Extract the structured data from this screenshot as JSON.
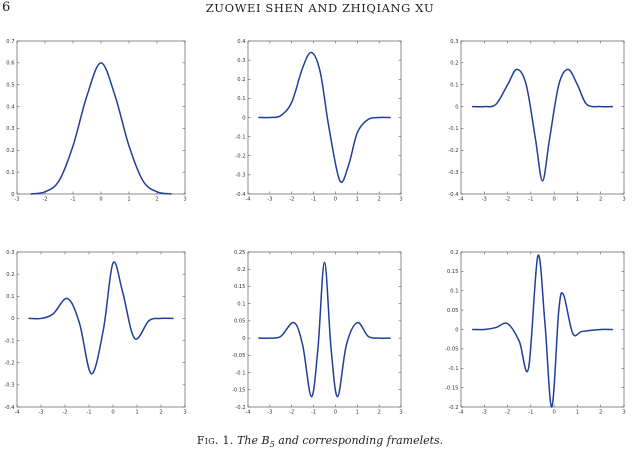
{
  "header": {
    "page_number": "6",
    "running_title": "ZUOWEI SHEN AND ZHIQIANG XU"
  },
  "caption": {
    "fig_label": "Fig. 1.",
    "text_before": "The B",
    "subscript": "5",
    "text_after": " and corresponding framelets."
  },
  "chart_data": [
    {
      "type": "line",
      "xlim": [
        -3,
        3
      ],
      "ylim": [
        0,
        0.7
      ],
      "xticks": [
        "-3",
        "-2",
        "-1",
        "0",
        "1",
        "2",
        "3"
      ],
      "yticks": [
        "0",
        "0.1",
        "0.2",
        "0.3",
        "0.4",
        "0.5",
        "0.6",
        "0.7"
      ],
      "x": [
        -2.5,
        -2,
        -1.5,
        -1,
        -0.5,
        0,
        0.5,
        1,
        1.5,
        2,
        2.5
      ],
      "y": [
        0.0,
        0.01,
        0.06,
        0.22,
        0.45,
        0.6,
        0.45,
        0.22,
        0.06,
        0.01,
        0.0
      ]
    },
    {
      "type": "line",
      "xlim": [
        -4,
        3
      ],
      "ylim": [
        -0.4,
        0.4
      ],
      "xticks": [
        "-4",
        "-3",
        "-2",
        "-1",
        "0",
        "1",
        "2",
        "3"
      ],
      "yticks": [
        "-0.4",
        "-0.3",
        "-0.2",
        "-0.1",
        "0",
        "0.1",
        "0.2",
        "0.3",
        "0.4"
      ],
      "x": [
        -3.5,
        -3,
        -2.5,
        -2,
        -1.5,
        -1.1,
        -0.7,
        -0.3,
        0.2,
        0.6,
        1,
        1.5,
        2,
        2.5
      ],
      "y": [
        0.0,
        0.0,
        0.01,
        0.08,
        0.26,
        0.34,
        0.24,
        -0.05,
        -0.33,
        -0.25,
        -0.08,
        -0.01,
        0.0,
        0.0
      ]
    },
    {
      "type": "line",
      "xlim": [
        -4,
        3
      ],
      "ylim": [
        -0.4,
        0.3
      ],
      "xticks": [
        "-4",
        "-3",
        "-2",
        "-1",
        "0",
        "1",
        "2",
        "3"
      ],
      "yticks": [
        "-0.4",
        "-0.3",
        "-0.2",
        "-0.1",
        "0",
        "0.1",
        "0.2",
        "0.3"
      ],
      "x": [
        -3.5,
        -3,
        -2.5,
        -2,
        -1.6,
        -1.2,
        -0.8,
        -0.5,
        -0.2,
        0.2,
        0.6,
        1,
        1.4,
        2,
        2.5
      ],
      "y": [
        0.0,
        0.0,
        0.01,
        0.1,
        0.17,
        0.1,
        -0.15,
        -0.34,
        -0.15,
        0.1,
        0.17,
        0.1,
        0.01,
        0.0,
        0.0
      ]
    },
    {
      "type": "line",
      "xlim": [
        -4,
        3
      ],
      "ylim": [
        -0.4,
        0.3
      ],
      "xticks": [
        "-4",
        "-3",
        "-2",
        "-1",
        "0",
        "1",
        "2",
        "3"
      ],
      "yticks": [
        "-0.4",
        "-0.3",
        "-0.2",
        "-0.1",
        "0",
        "0.1",
        "0.2",
        "0.3"
      ],
      "x": [
        -3.5,
        -3,
        -2.5,
        -1.9,
        -1.4,
        -0.9,
        -0.4,
        0,
        0.4,
        0.9,
        1.5,
        2,
        2.5
      ],
      "y": [
        0.0,
        0.0,
        0.02,
        0.09,
        -0.02,
        -0.25,
        -0.05,
        0.25,
        0.12,
        -0.09,
        -0.01,
        0.0,
        0.0
      ]
    },
    {
      "type": "line",
      "xlim": [
        -4,
        3
      ],
      "ylim": [
        -0.2,
        0.25
      ],
      "xticks": [
        "-4",
        "-3",
        "-2",
        "-1",
        "0",
        "1",
        "2",
        "3"
      ],
      "yticks": [
        "-0.2",
        "-0.15",
        "-0.1",
        "-0.05",
        "0",
        "0.05",
        "0.1",
        "0.15",
        "0.2",
        "0.25"
      ],
      "x": [
        -3.5,
        -3,
        -2.5,
        -1.9,
        -1.5,
        -1.1,
        -0.8,
        -0.5,
        -0.2,
        0.1,
        0.5,
        1,
        1.5,
        2,
        2.5
      ],
      "y": [
        0.0,
        0.0,
        0.005,
        0.045,
        -0.02,
        -0.17,
        -0.03,
        0.22,
        -0.03,
        -0.17,
        -0.02,
        0.045,
        0.005,
        0.0,
        0.0
      ]
    },
    {
      "type": "line",
      "xlim": [
        -4,
        3
      ],
      "ylim": [
        -0.2,
        0.2
      ],
      "xticks": [
        "-4",
        "-3",
        "-2",
        "-1",
        "0",
        "1",
        "2",
        "3"
      ],
      "yticks": [
        "-0.2",
        "-0.15",
        "-0.1",
        "-0.05",
        "0",
        "0.05",
        "0.1",
        "0.15",
        "0.2"
      ],
      "x": [
        -3.5,
        -3,
        -2.5,
        -2,
        -1.5,
        -1.1,
        -0.7,
        -0.4,
        -0.1,
        0.2,
        0.4,
        0.8,
        1.2,
        2,
        2.5
      ],
      "y": [
        0.0,
        0.0,
        0.005,
        0.015,
        -0.03,
        -0.1,
        0.19,
        0.02,
        -0.2,
        0.05,
        0.09,
        -0.01,
        -0.005,
        0.0,
        0.0
      ]
    }
  ]
}
